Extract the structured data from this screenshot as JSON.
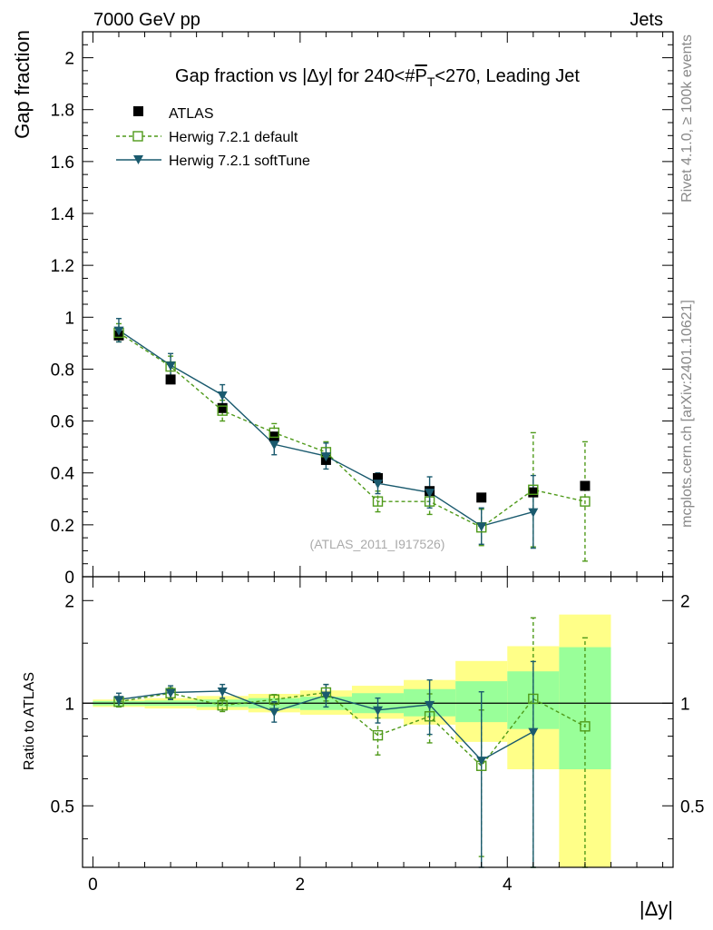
{
  "header": {
    "energy_label": "7000 GeV pp",
    "category_label": "Jets"
  },
  "side_labels": {
    "rivet": "Rivet 4.1.0, ≥ 100k events",
    "mcplots": "mcplots.cern.ch [arXiv:2401.10621]"
  },
  "chart_data": [
    {
      "type": "scatter",
      "panel": "main",
      "title": "Gap fraction vs |Δy| for 240<#P_T<270, Leading Jet",
      "title_parts": {
        "prefix": "Gap fraction vs |Δy| for 240<#",
        "p": "P",
        "sub": "T",
        "suffix": "<270, Leading Jet"
      },
      "ylabel": "Gap fraction",
      "xlabel": "|Δy|",
      "xlim": [
        -0.1,
        5.6
      ],
      "ylim": [
        0,
        2.1
      ],
      "y_ticks": [
        0,
        0.2,
        0.4,
        0.6,
        0.8,
        1,
        1.2,
        1.4,
        1.6,
        1.8,
        2
      ],
      "y_tick_labels": [
        "0",
        "0.2",
        "0.4",
        "0.6",
        "0.8",
        "1",
        "1.2",
        "1.4",
        "1.6",
        "1.8",
        "2"
      ],
      "analysis_label": "(ATLAS_2011_I917526)",
      "legend": [
        "ATLAS",
        "Herwig 7.2.1 default",
        "Herwig 7.2.1 softTune"
      ],
      "series": [
        {
          "name": "ATLAS",
          "color": "#000000",
          "x": [
            0.25,
            0.75,
            1.25,
            1.75,
            2.25,
            2.75,
            3.25,
            3.75,
            4.25,
            4.75
          ],
          "y": [
            0.93,
            0.76,
            0.65,
            0.54,
            0.45,
            0.38,
            0.33,
            0.305,
            0.325,
            0.35
          ]
        },
        {
          "name": "Herwig 7.2.1 default",
          "color": "#4f9a1a",
          "x": [
            0.25,
            0.75,
            1.25,
            1.75,
            2.25,
            2.75,
            3.25,
            3.75,
            4.25,
            4.75
          ],
          "y": [
            0.94,
            0.81,
            0.64,
            0.555,
            0.48,
            0.29,
            0.29,
            0.19,
            0.335,
            0.29
          ],
          "err": [
            0.035,
            0.04,
            0.04,
            0.035,
            0.04,
            0.04,
            0.05,
            0.07,
            0.22,
            0.23
          ]
        },
        {
          "name": "Herwig 7.2.1 softTune",
          "color": "#1a5a6e",
          "x": [
            0.25,
            0.75,
            1.25,
            1.75,
            2.25,
            2.75,
            3.25,
            3.75,
            4.25
          ],
          "y": [
            0.95,
            0.815,
            0.7,
            0.51,
            0.465,
            0.36,
            0.325,
            0.195,
            0.25
          ],
          "err": [
            0.045,
            0.045,
            0.04,
            0.04,
            0.05,
            0.04,
            0.06,
            0.07,
            0.14
          ]
        }
      ]
    },
    {
      "type": "scatter",
      "panel": "ratio",
      "ylabel": "Ratio to ATLAS",
      "xlabel": "|Δy|",
      "xlim": [
        -0.1,
        5.6
      ],
      "ylim": [
        0.33,
        2.35
      ],
      "log_y": true,
      "x_ticks": [
        0,
        2,
        4
      ],
      "x_tick_labels": [
        "0",
        "2",
        "4"
      ],
      "y_ticks": [
        0.5,
        1,
        2
      ],
      "y_tick_labels": [
        "0.5",
        "1",
        "2"
      ],
      "bands": {
        "x_edges": [
          0.0,
          0.5,
          1.0,
          1.5,
          2.0,
          2.5,
          3.0,
          3.5,
          4.0,
          4.5,
          5.0
        ],
        "inner_low": [
          0.985,
          0.982,
          0.975,
          0.965,
          0.955,
          0.935,
          0.915,
          0.88,
          0.84,
          0.64
        ],
        "inner_high": [
          1.015,
          1.018,
          1.025,
          1.035,
          1.045,
          1.07,
          1.1,
          1.16,
          1.24,
          1.46
        ],
        "outer_low": [
          0.975,
          0.965,
          0.955,
          0.94,
          0.925,
          0.9,
          0.865,
          0.77,
          0.64,
          0.33
        ],
        "outer_high": [
          1.025,
          1.035,
          1.05,
          1.065,
          1.09,
          1.125,
          1.17,
          1.33,
          1.47,
          1.82
        ],
        "inner_color": "#99ff99",
        "outer_color": "#ffff88"
      },
      "series": [
        {
          "name": "Herwig 7.2.1 default",
          "color": "#4f9a1a",
          "x": [
            0.25,
            0.75,
            1.25,
            1.75,
            2.25,
            2.75,
            3.25,
            3.75,
            4.25,
            4.75
          ],
          "y": [
            1.01,
            1.07,
            0.985,
            1.025,
            1.075,
            0.805,
            0.915,
            0.655,
            1.03,
            0.855
          ],
          "err": [
            0.035,
            0.04,
            0.04,
            0.035,
            0.06,
            0.1,
            0.15,
            0.3,
            0.75,
            0.7
          ]
        },
        {
          "name": "Herwig 7.2.1 softTune",
          "color": "#1a5a6e",
          "x": [
            0.25,
            0.75,
            1.25,
            1.75,
            2.25,
            2.75,
            3.25,
            3.75,
            4.25
          ],
          "y": [
            1.025,
            1.075,
            1.085,
            0.945,
            1.055,
            0.955,
            0.99,
            0.68,
            0.825
          ],
          "err": [
            0.045,
            0.05,
            0.05,
            0.065,
            0.08,
            0.08,
            0.18,
            0.4,
            0.5
          ]
        }
      ]
    }
  ]
}
